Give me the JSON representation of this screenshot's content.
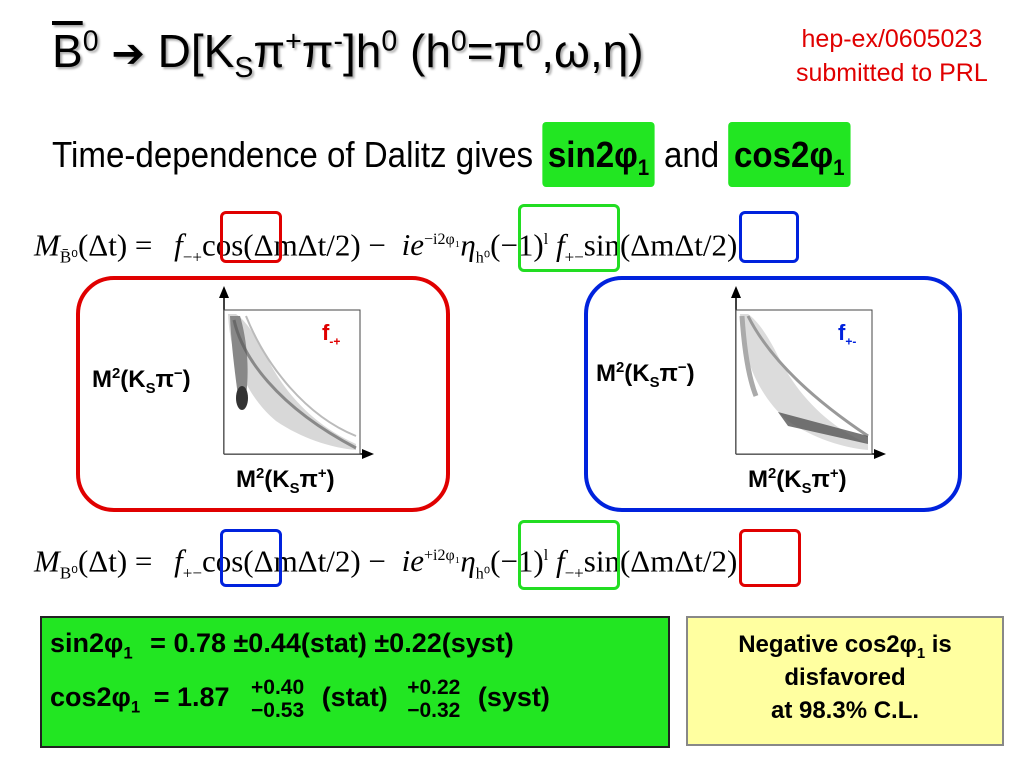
{
  "title": {
    "b": "B",
    "b_sup": "0",
    "arrow": "➔",
    "d_open": "D[K",
    "ks_sub": "S",
    "pi1": "π",
    "pi1_sup": "+",
    "pi2": "π",
    "pi2_sup": "-",
    "close_h": "]h",
    "h_sup": "0",
    "paren_open": "(h",
    "h2_sup": "0",
    "eqs": "=π",
    "pi0_sup": "0",
    "tail": ",ω,η)"
  },
  "reference": {
    "line1": "hep-ex/0605023",
    "line2": "submitted to PRL"
  },
  "subtitle": {
    "text": "Time-dependence of Dalitz gives",
    "hl1": "sin2φ",
    "hl1_sub": "1",
    "and": "and",
    "hl2": "cos2φ",
    "hl2_sub": "1"
  },
  "equation_top": {
    "lhs": "M",
    "lhs_sub": "B̄⁰",
    "lhs_arg": "(Δt)  =",
    "f1": "f",
    "f1_sub": "−+",
    "cos": "cos(ΔmΔt/2) −",
    "ie": "ie",
    "ie_sup": "−i2φ₁",
    "eta": "η",
    "eta_sub": "h⁰",
    "sign": "(−1)",
    "sign_sup": "l",
    "f2": "f",
    "f2_sub": "+−",
    "sin": "sin(ΔmΔt/2)"
  },
  "equation_bottom": {
    "lhs": "M",
    "lhs_sub": "B⁰",
    "lhs_arg": "(Δt)  =",
    "f1": "f",
    "f1_sub": "+−",
    "cos": "cos(ΔmΔt/2) −",
    "ie": "ie",
    "ie_sup": "+i2φ₁",
    "eta": "η",
    "eta_sub": "h⁰",
    "sign": "(−1)",
    "sign_sup": "l",
    "f2": "f",
    "f2_sub": "−+",
    "sin": "sin(ΔmΔt/2)"
  },
  "left_panel": {
    "y_label": "M",
    "y_sup": "2",
    "y_mid": "(K",
    "y_sub": "S",
    "y_pi": "π",
    "y_pi_sup": "−",
    "y_close": ")",
    "x_label": "M",
    "x_sup": "2",
    "x_mid": "(K",
    "x_sub": "S",
    "x_pi": "π",
    "x_pi_sup": "+",
    "x_close": ")",
    "f_label": "f",
    "f_sub": "-+"
  },
  "right_panel": {
    "y_label": "M",
    "y_sup": "2",
    "y_mid": "(K",
    "y_sub": "S",
    "y_pi": "π",
    "y_pi_sup": "−",
    "y_close": ")",
    "x_label": "M",
    "x_sup": "2",
    "x_mid": "(K",
    "x_sub": "S",
    "x_pi": "π",
    "x_pi_sup": "+",
    "x_close": ")",
    "f_label": "f",
    "f_sub": "+-"
  },
  "results": {
    "sin_label": "sin2φ",
    "sin_sub": "1",
    "sin_value": "= 0.78 ±0.44(stat) ±0.22(syst)",
    "cos_label": "cos2φ",
    "cos_sub": "1",
    "cos_eq": "= 1.87",
    "stat_up": "+0.40",
    "stat_down": "−0.53",
    "stat_word": "(stat)",
    "syst_up": "+0.22",
    "syst_down": "−0.32",
    "syst_word": "(syst)"
  },
  "note": {
    "line1_a": "Negative cos2φ",
    "line1_sub": "1",
    "line1_b": " is",
    "line2": "disfavored",
    "line3": "at 98.3% C.L."
  },
  "colors": {
    "red": "#e00000",
    "blue": "#0022dd",
    "green_box": "#22dd22",
    "highlight": "#22e622",
    "note_bg": "#ffffa0"
  }
}
